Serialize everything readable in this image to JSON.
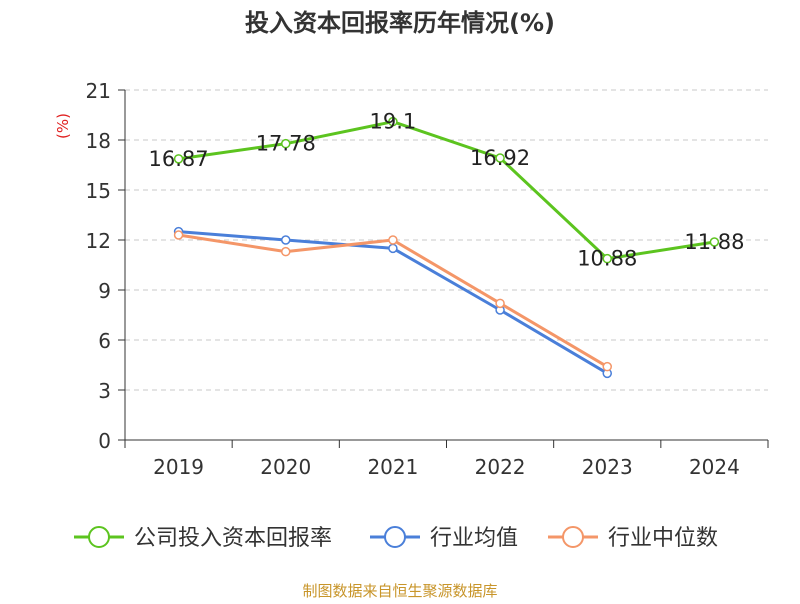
{
  "chart_data": {
    "type": "line",
    "title": "投入资本回报率历年情况(%)",
    "ylabel": "(%)",
    "xlabel": "",
    "categories": [
      "2019",
      "2020",
      "2021",
      "2022",
      "2023",
      "2024"
    ],
    "ylim": [
      0,
      21
    ],
    "yticks": [
      0,
      3,
      6,
      9,
      12,
      15,
      18,
      21
    ],
    "grid": true,
    "legend_position": "bottom",
    "series": [
      {
        "name": "公司投入资本回报率",
        "color": "#5cc41f",
        "values": [
          16.87,
          17.78,
          19.1,
          16.92,
          10.88,
          11.88
        ],
        "labels": [
          "16.87",
          "17.78",
          "19.1",
          "16.92",
          "10.88",
          "11.88"
        ]
      },
      {
        "name": "行业均值",
        "color": "#4a7fd9",
        "values": [
          12.5,
          12.0,
          11.5,
          7.8,
          4.0,
          null
        ]
      },
      {
        "name": "行业中位数",
        "color": "#f49668",
        "values": [
          12.3,
          11.3,
          12.0,
          8.2,
          4.4,
          null
        ]
      }
    ]
  },
  "source": "制图数据来自恒生聚源数据库"
}
